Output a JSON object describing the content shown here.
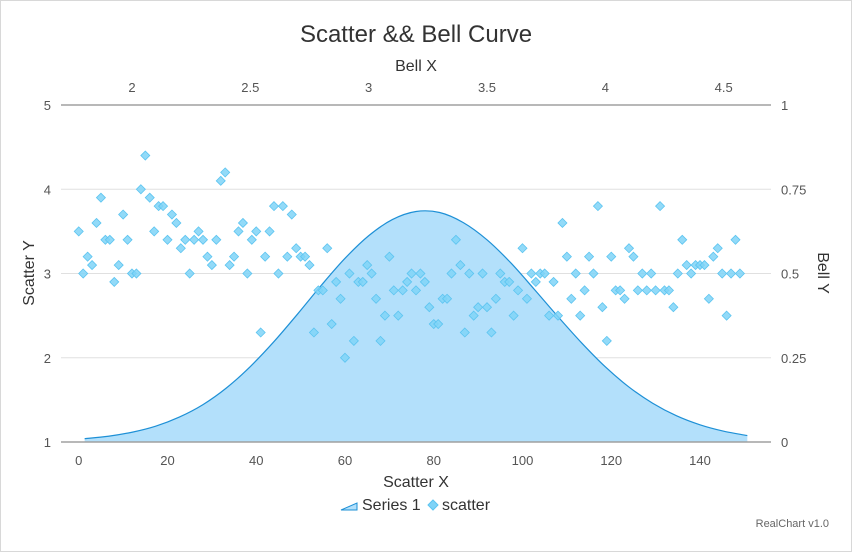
{
  "chart_data": {
    "type": "scatter",
    "title": "Scatter && Bell Curve",
    "credit": "RealChart v1.0",
    "colors": {
      "scatter": "#7fd3f7",
      "scatter_stroke": "#5cc4f0",
      "bell_fill": "#b3e0fb",
      "bell_line": "#1e90d6",
      "grid": "#e0e0e0",
      "axis": "#a0a0a0"
    },
    "axes": {
      "x_bottom": {
        "title": "Scatter X",
        "min": -4,
        "max": 156,
        "ticks": [
          0,
          20,
          40,
          60,
          80,
          100,
          120,
          140
        ],
        "tick_labels": [
          "0",
          "20",
          "40",
          "60",
          "80",
          "100",
          "120",
          "140"
        ]
      },
      "x_top": {
        "title": "Bell X",
        "min": 1.7,
        "max": 4.7,
        "ticks": [
          2,
          2.5,
          3,
          3.5,
          4,
          4.5
        ],
        "tick_labels": [
          "2",
          "2.5",
          "3",
          "3.5",
          "4",
          "4.5"
        ]
      },
      "y_left": {
        "title": "Scatter Y",
        "min": 1,
        "max": 5,
        "ticks": [
          1,
          2,
          3,
          4,
          5
        ],
        "tick_labels": [
          "1",
          "2",
          "3",
          "4",
          "5"
        ]
      },
      "y_right": {
        "title": "Bell Y",
        "min": 0,
        "max": 1,
        "ticks": [
          0,
          0.25,
          0.5,
          0.75,
          1
        ],
        "tick_labels": [
          "0",
          "0.25",
          "0.5",
          "0.75",
          "1"
        ]
      }
    },
    "grid": true,
    "legend": {
      "placement": "bottom-center",
      "entries": [
        "Series 1",
        "scatter"
      ]
    },
    "series": [
      {
        "name": "Series 1",
        "type": "area",
        "x_axis": "top",
        "y_axis": "right",
        "x": [
          1.8,
          1.9,
          2.0,
          2.1,
          2.2,
          2.3,
          2.4,
          2.5,
          2.6,
          2.7,
          2.8,
          2.9,
          3.0,
          3.1,
          3.2,
          3.3,
          3.4,
          3.5,
          3.6,
          3.7,
          3.8,
          3.9,
          4.0,
          4.1,
          4.2,
          4.3,
          4.4,
          4.5,
          4.6
        ],
        "y": [
          0.01,
          0.017,
          0.029,
          0.047,
          0.074,
          0.111,
          0.161,
          0.224,
          0.298,
          0.38,
          0.465,
          0.545,
          0.612,
          0.66,
          0.684,
          0.681,
          0.651,
          0.6,
          0.532,
          0.453,
          0.372,
          0.294,
          0.223,
          0.163,
          0.115,
          0.078,
          0.051,
          0.032,
          0.019
        ]
      },
      {
        "name": "scatter",
        "type": "scatter",
        "x_axis": "bottom",
        "y_axis": "left",
        "points": [
          [
            0,
            3.5
          ],
          [
            1,
            3.0
          ],
          [
            2,
            3.2
          ],
          [
            3,
            3.1
          ],
          [
            4,
            3.6
          ],
          [
            5,
            3.9
          ],
          [
            6,
            3.4
          ],
          [
            7,
            3.4
          ],
          [
            8,
            2.9
          ],
          [
            9,
            3.1
          ],
          [
            10,
            3.7
          ],
          [
            11,
            3.4
          ],
          [
            12,
            3.0
          ],
          [
            13,
            3.0
          ],
          [
            14,
            4.0
          ],
          [
            15,
            4.4
          ],
          [
            16,
            3.9
          ],
          [
            17,
            3.5
          ],
          [
            18,
            3.8
          ],
          [
            19,
            3.8
          ],
          [
            20,
            3.4
          ],
          [
            21,
            3.7
          ],
          [
            22,
            3.6
          ],
          [
            23,
            3.3
          ],
          [
            24,
            3.4
          ],
          [
            25,
            3.0
          ],
          [
            26,
            3.4
          ],
          [
            27,
            3.5
          ],
          [
            28,
            3.4
          ],
          [
            29,
            3.2
          ],
          [
            30,
            3.1
          ],
          [
            31,
            3.4
          ],
          [
            32,
            4.1
          ],
          [
            33,
            4.2
          ],
          [
            34,
            3.1
          ],
          [
            35,
            3.2
          ],
          [
            36,
            3.5
          ],
          [
            37,
            3.6
          ],
          [
            38,
            3.0
          ],
          [
            39,
            3.4
          ],
          [
            40,
            3.5
          ],
          [
            41,
            2.3
          ],
          [
            42,
            3.2
          ],
          [
            43,
            3.5
          ],
          [
            44,
            3.8
          ],
          [
            45,
            3.0
          ],
          [
            46,
            3.8
          ],
          [
            47,
            3.2
          ],
          [
            48,
            3.7
          ],
          [
            49,
            3.3
          ],
          [
            50,
            3.2
          ],
          [
            51,
            3.2
          ],
          [
            52,
            3.1
          ],
          [
            53,
            2.3
          ],
          [
            54,
            2.8
          ],
          [
            55,
            2.8
          ],
          [
            56,
            3.3
          ],
          [
            57,
            2.4
          ],
          [
            58,
            2.9
          ],
          [
            59,
            2.7
          ],
          [
            60,
            2.0
          ],
          [
            61,
            3.0
          ],
          [
            62,
            2.2
          ],
          [
            63,
            2.9
          ],
          [
            64,
            2.9
          ],
          [
            65,
            3.1
          ],
          [
            66,
            3.0
          ],
          [
            67,
            2.7
          ],
          [
            68,
            2.2
          ],
          [
            69,
            2.5
          ],
          [
            70,
            3.2
          ],
          [
            71,
            2.8
          ],
          [
            72,
            2.5
          ],
          [
            73,
            2.8
          ],
          [
            74,
            2.9
          ],
          [
            75,
            3.0
          ],
          [
            76,
            2.8
          ],
          [
            77,
            3.0
          ],
          [
            78,
            2.9
          ],
          [
            79,
            2.6
          ],
          [
            80,
            2.4
          ],
          [
            81,
            2.4
          ],
          [
            82,
            2.7
          ],
          [
            83,
            2.7
          ],
          [
            84,
            3.0
          ],
          [
            85,
            3.4
          ],
          [
            86,
            3.1
          ],
          [
            87,
            2.3
          ],
          [
            88,
            3.0
          ],
          [
            89,
            2.5
          ],
          [
            90,
            2.6
          ],
          [
            91,
            3.0
          ],
          [
            92,
            2.6
          ],
          [
            93,
            2.3
          ],
          [
            94,
            2.7
          ],
          [
            95,
            3.0
          ],
          [
            96,
            2.9
          ],
          [
            97,
            2.9
          ],
          [
            98,
            2.5
          ],
          [
            99,
            2.8
          ],
          [
            100,
            3.3
          ],
          [
            101,
            2.7
          ],
          [
            102,
            3.0
          ],
          [
            103,
            2.9
          ],
          [
            104,
            3.0
          ],
          [
            105,
            3.0
          ],
          [
            106,
            2.5
          ],
          [
            107,
            2.9
          ],
          [
            108,
            2.5
          ],
          [
            109,
            3.6
          ],
          [
            110,
            3.2
          ],
          [
            111,
            2.7
          ],
          [
            112,
            3.0
          ],
          [
            113,
            2.5
          ],
          [
            114,
            2.8
          ],
          [
            115,
            3.2
          ],
          [
            116,
            3.0
          ],
          [
            117,
            3.8
          ],
          [
            118,
            2.6
          ],
          [
            119,
            2.2
          ],
          [
            120,
            3.2
          ],
          [
            121,
            2.8
          ],
          [
            122,
            2.8
          ],
          [
            123,
            2.7
          ],
          [
            124,
            3.3
          ],
          [
            125,
            3.2
          ],
          [
            126,
            2.8
          ],
          [
            127,
            3.0
          ],
          [
            128,
            2.8
          ],
          [
            129,
            3.0
          ],
          [
            130,
            2.8
          ],
          [
            131,
            3.8
          ],
          [
            132,
            2.8
          ],
          [
            133,
            2.8
          ],
          [
            134,
            2.6
          ],
          [
            135,
            3.0
          ],
          [
            136,
            3.4
          ],
          [
            137,
            3.1
          ],
          [
            138,
            3.0
          ],
          [
            139,
            3.1
          ],
          [
            140,
            3.1
          ],
          [
            141,
            3.1
          ],
          [
            142,
            2.7
          ],
          [
            143,
            3.2
          ],
          [
            144,
            3.3
          ],
          [
            145,
            3.0
          ],
          [
            146,
            2.5
          ],
          [
            147,
            3.0
          ],
          [
            148,
            3.4
          ],
          [
            149,
            3.0
          ]
        ]
      }
    ]
  }
}
